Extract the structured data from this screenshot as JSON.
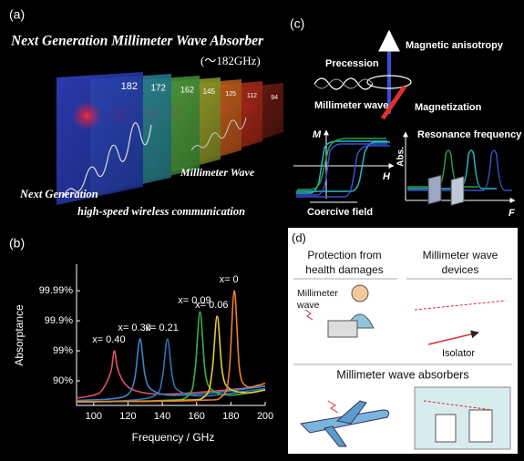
{
  "panel_a": {
    "label": "(a)",
    "title": "Next Generation Millimeter Wave Absorber",
    "range": "(～182GHz)",
    "frequency_labels": [
      "182",
      "172",
      "162",
      "145",
      "125",
      "112",
      "94"
    ],
    "wave_label": "Millimeter Wave",
    "caption": [
      "Next Generation",
      "high-speed wireless communication"
    ]
  },
  "panel_c": {
    "label": "(c)",
    "anisotropy": "Magnetic anisotropy",
    "precession": "Precession",
    "wave": "Millimeter wave",
    "magnetization": "Magnetization",
    "m_axis": "M",
    "h_axis": "H",
    "abs_axis": "Abs.",
    "resonance": "Resonance frequency",
    "f_axis": "F",
    "coercive": "Coercive field"
  },
  "panel_d": {
    "label": "(d)",
    "health": [
      "Protection from",
      "health damages"
    ],
    "devices": [
      "Millimeter wave",
      "devices"
    ],
    "wave": [
      "Millimeter",
      "wave"
    ],
    "isolator": "Isolator",
    "absorbers": "Millimeter wave absorbers"
  },
  "chart_data": {
    "type": "line",
    "label": "(b)",
    "x_label": "Frequency / GHz",
    "y_label": "Absorptance",
    "xlim": [
      90,
      200
    ],
    "xticks": [
      100,
      120,
      140,
      160,
      180,
      200
    ],
    "ylim": [
      34,
      99.9987
    ],
    "yscale": "log-loss",
    "yticks": [
      {
        "value": 90,
        "label": "90%"
      },
      {
        "value": 99,
        "label": "99%"
      },
      {
        "value": 99.9,
        "label": "99.9%"
      },
      {
        "value": 99.99,
        "label": "99.99%"
      }
    ],
    "series": [
      {
        "name": "x= 0.40",
        "color": "#e0506a",
        "x": [
          90,
          100,
          105,
          110,
          112,
          114,
          118,
          125,
          140,
          170,
          200
        ],
        "values": [
          62,
          70,
          80,
          95,
          99,
          96,
          88,
          78,
          72,
          78,
          85
        ]
      },
      {
        "name": "x= 0.30",
        "color": "#3b86c8",
        "x": [
          90,
          110,
          120,
          124,
          127,
          130,
          134,
          145,
          170,
          200
        ],
        "values": [
          55,
          60,
          72,
          92,
          99.6,
          93,
          80,
          70,
          75,
          85
        ]
      },
      {
        "name": "x= 0.21",
        "color": "#2f74b8",
        "x": [
          90,
          120,
          136,
          140,
          143,
          146,
          150,
          165,
          200
        ],
        "values": [
          50,
          55,
          70,
          92,
          99.6,
          92,
          78,
          68,
          82
        ]
      },
      {
        "name": "x= 0.09",
        "color": "#3cb04a",
        "x": [
          90,
          140,
          155,
          159,
          162,
          165,
          169,
          180,
          200
        ],
        "values": [
          50,
          55,
          68,
          95,
          99.95,
          95,
          80,
          70,
          80
        ]
      },
      {
        "name": "x= 0.06",
        "color": "#e8cc30",
        "x": [
          90,
          150,
          165,
          169,
          172,
          175,
          179,
          190,
          200
        ],
        "values": [
          50,
          55,
          68,
          95,
          99.93,
          95,
          82,
          75,
          80
        ]
      },
      {
        "name": "x= 0",
        "color": "#e8802f",
        "x": [
          90,
          160,
          175,
          179,
          182,
          185,
          189,
          196,
          200
        ],
        "values": [
          50,
          55,
          68,
          95,
          99.99,
          96,
          85,
          86,
          88
        ]
      }
    ]
  }
}
